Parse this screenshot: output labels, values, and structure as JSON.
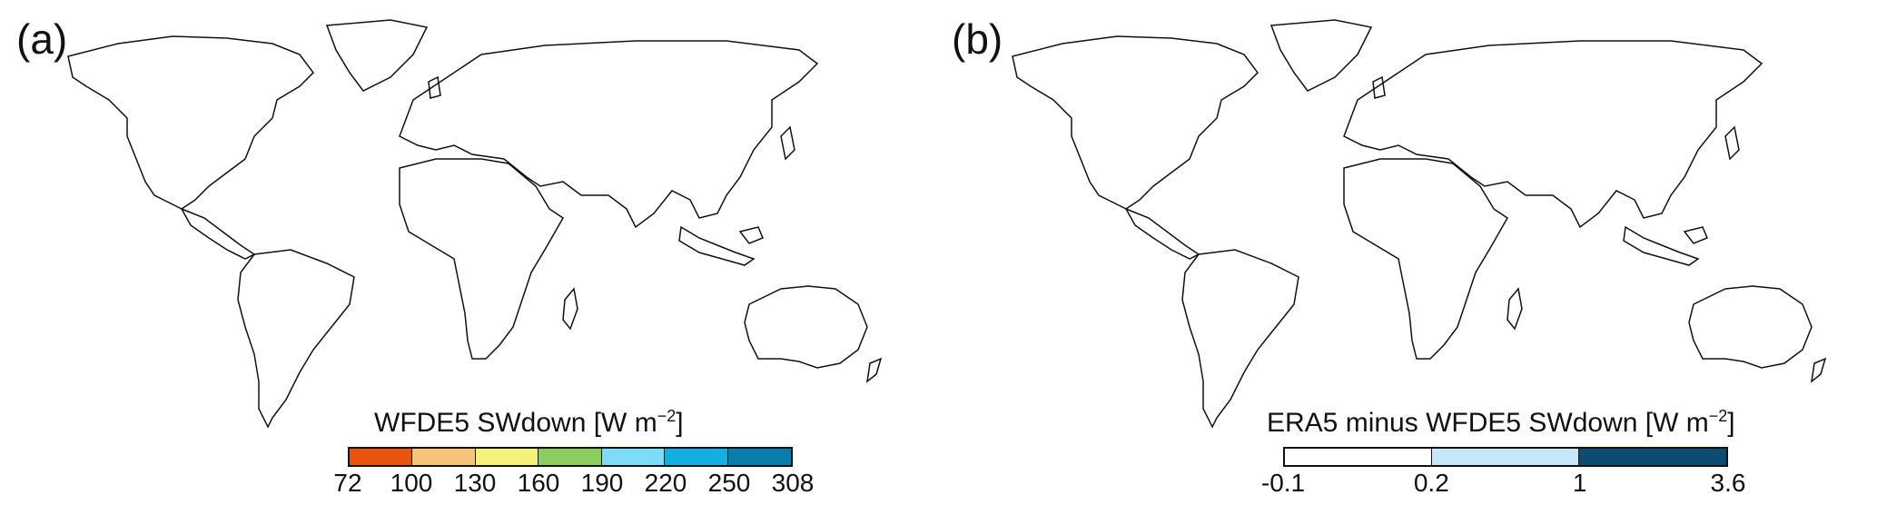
{
  "panels": [
    {
      "letter": "(a)",
      "legend": {
        "title_main": "WFDE5 SWdown [W m",
        "title_exp": "−2",
        "title_end": "]",
        "ticks": [
          "72",
          "100",
          "130",
          "160",
          "190",
          "220",
          "250",
          "308"
        ],
        "colors": [
          "#e8530e",
          "#f5c47a",
          "#f5f27a",
          "#8dcc61",
          "#7fdcf8",
          "#14aee2",
          "#097eaa"
        ]
      }
    },
    {
      "letter": "(b)",
      "legend": {
        "title_main": "ERA5 minus WFDE5 SWdown [W m",
        "title_exp": "−2",
        "title_end": "]",
        "ticks": [
          "-0.1",
          "0.2",
          "1",
          "3.6"
        ],
        "colors": [
          "#ffffff",
          "#c6e7fa",
          "#0d4b73"
        ]
      }
    }
  ]
}
